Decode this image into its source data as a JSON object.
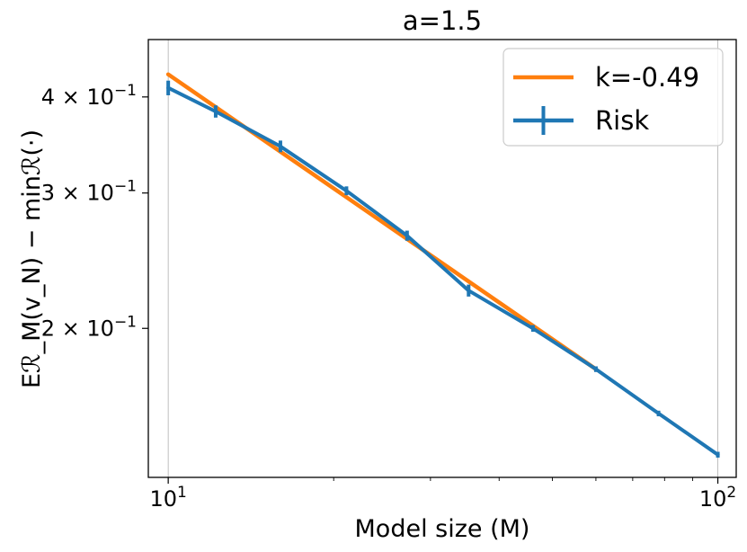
{
  "chart_data": {
    "type": "line",
    "title": "a=1.5",
    "xlabel": "Model size (M)",
    "ylabel": "Eℛ_M(v_N) − minℛ(·)",
    "x_scale": "log",
    "y_scale": "log",
    "xlim": [
      9.2,
      108
    ],
    "ylim": [
      0.128,
      0.475
    ],
    "x_ticks": [
      {
        "value": 10,
        "base": "10",
        "exp": "1"
      },
      {
        "value": 100,
        "base": "10",
        "exp": "2"
      }
    ],
    "y_ticks": [
      {
        "value": 0.4,
        "mantissa": "4",
        "times": "×",
        "base": "10",
        "exp": "−1"
      },
      {
        "value": 0.3,
        "mantissa": "3",
        "times": "×",
        "base": "10",
        "exp": "−1"
      },
      {
        "value": 0.2,
        "mantissa": "2",
        "times": "×",
        "base": "10",
        "exp": "−1"
      }
    ],
    "grid": "x-major",
    "legend_position": "top-right",
    "series": [
      {
        "name": "k=-0.49",
        "kind": "fit-line",
        "color": "#ff7f0e",
        "x": [
          10,
          60
        ],
        "y": [
          0.428,
          0.177
        ]
      },
      {
        "name": "Risk",
        "kind": "line-errorbar",
        "color": "#1f77b4",
        "x": [
          10,
          12.2,
          16,
          21.1,
          27.2,
          35.2,
          46.1,
          60,
          78,
          100
        ],
        "y": [
          0.411,
          0.383,
          0.345,
          0.302,
          0.264,
          0.224,
          0.2,
          0.177,
          0.155,
          0.137
        ],
        "err": [
          0.009,
          0.007,
          0.006,
          0.004,
          0.004,
          0.004,
          0.002,
          0.0015,
          0.0013,
          0.0012
        ]
      }
    ]
  }
}
